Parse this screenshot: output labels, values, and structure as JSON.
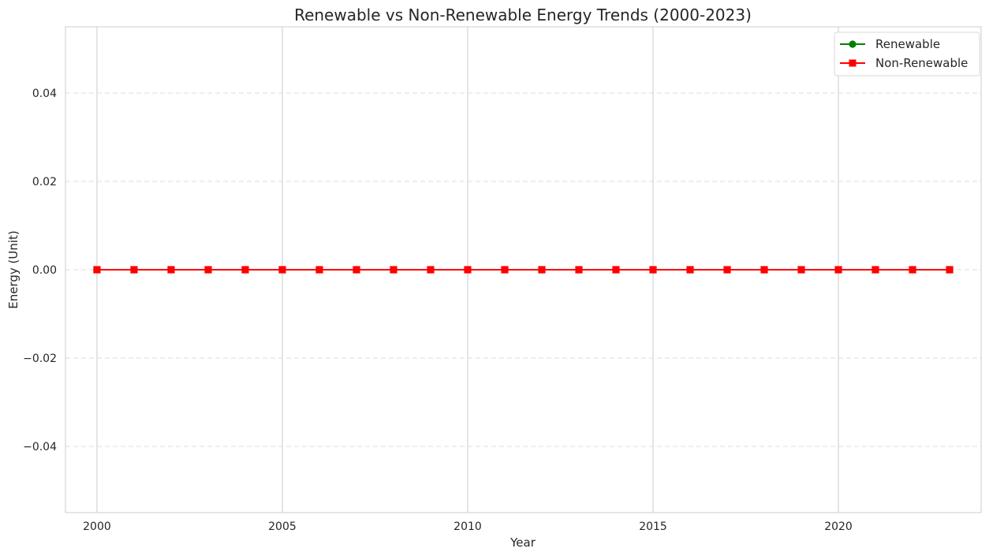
{
  "chart_data": {
    "type": "line",
    "title": "Renewable vs Non-Renewable Energy Trends (2000-2023)",
    "xlabel": "Year",
    "ylabel": "Energy (Unit)",
    "x": [
      2000,
      2001,
      2002,
      2003,
      2004,
      2005,
      2006,
      2007,
      2008,
      2009,
      2010,
      2011,
      2012,
      2013,
      2014,
      2015,
      2016,
      2017,
      2018,
      2019,
      2020,
      2021,
      2022,
      2023
    ],
    "xlim": [
      1999.15,
      2023.85
    ],
    "ylim": [
      -0.055,
      0.055
    ],
    "x_ticks": [
      2000,
      2005,
      2010,
      2015,
      2020
    ],
    "x_tick_labels": [
      "2000",
      "2005",
      "2010",
      "2015",
      "2020"
    ],
    "y_ticks": [
      -0.04,
      -0.02,
      0.0,
      0.02,
      0.04
    ],
    "y_tick_labels": [
      "−0.04",
      "−0.02",
      "0.00",
      "0.02",
      "0.04"
    ],
    "grid": {
      "x": "solid",
      "y": "dashed"
    },
    "legend_position": "top-right",
    "series": [
      {
        "name": "Renewable",
        "color": "#008000",
        "marker": "circle",
        "values": [
          0,
          0,
          0,
          0,
          0,
          0,
          0,
          0,
          0,
          0,
          0,
          0,
          0,
          0,
          0,
          0,
          0,
          0,
          0,
          0,
          0,
          0,
          0,
          0
        ]
      },
      {
        "name": "Non-Renewable",
        "color": "#ff0000",
        "marker": "square",
        "values": [
          0,
          0,
          0,
          0,
          0,
          0,
          0,
          0,
          0,
          0,
          0,
          0,
          0,
          0,
          0,
          0,
          0,
          0,
          0,
          0,
          0,
          0,
          0,
          0
        ]
      }
    ]
  }
}
